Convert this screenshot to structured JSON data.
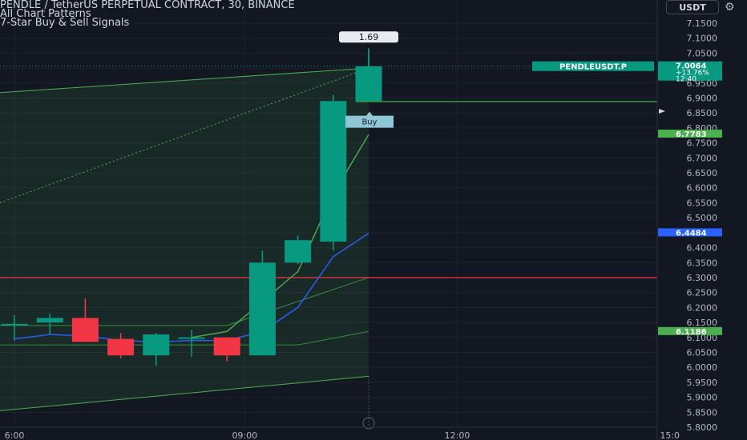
{
  "header": {
    "title": "PENDLE / TetherUS PERPETUAL CONTRACT, 30, BINANCE",
    "indicator_1": "All Chart Patterns",
    "indicator_2": "7-Star Buy & Sell Signals"
  },
  "toolbar": {
    "currency": "USDT",
    "settings_icon": "gear-icon"
  },
  "colors": {
    "background": "#131722",
    "bull": "#089981",
    "bear": "#f23645",
    "pattern_green": "#4caf50",
    "blue_line": "#2962ff",
    "red_line": "#f23645"
  },
  "chart_data": {
    "type": "candlestick",
    "symbol": "PENDLEUSDT.P",
    "timeframe": "30",
    "x_axis": {
      "tick_labels": [
        "6:00",
        "09:00",
        "12:00",
        "15:0"
      ],
      "tick_bars": [
        0,
        6.5,
        12.5,
        18.5
      ]
    },
    "ylim": [
      5.78,
      7.17
    ],
    "y_ticks": [
      "7.1500",
      "7.1000",
      "7.0500",
      "7.0000",
      "6.9500",
      "6.9000",
      "6.8500",
      "6.8000",
      "6.7500",
      "6.7000",
      "6.6500",
      "6.6000",
      "6.5500",
      "6.5000",
      "6.4500",
      "6.4000",
      "6.3500",
      "6.3000",
      "6.2500",
      "6.2000",
      "6.1500",
      "6.1000",
      "6.0500",
      "6.0000",
      "5.9500",
      "5.9000",
      "5.8500",
      "5.8000"
    ],
    "candles": [
      {
        "o": 6.145,
        "h": 6.175,
        "l": 6.09,
        "c": 6.145
      },
      {
        "o": 6.15,
        "h": 6.18,
        "l": 6.11,
        "c": 6.165
      },
      {
        "o": 6.165,
        "h": 6.23,
        "l": 6.095,
        "c": 6.085
      },
      {
        "o": 6.095,
        "h": 6.115,
        "l": 6.03,
        "c": 6.04
      },
      {
        "o": 6.04,
        "h": 6.115,
        "l": 6.005,
        "c": 6.11
      },
      {
        "o": 6.1,
        "h": 6.125,
        "l": 6.035,
        "c": 6.1
      },
      {
        "o": 6.1,
        "h": 6.1,
        "l": 6.02,
        "c": 6.04
      },
      {
        "o": 6.04,
        "h": 6.39,
        "l": 6.04,
        "c": 6.35
      },
      {
        "o": 6.35,
        "h": 6.44,
        "l": 6.345,
        "c": 6.425
      },
      {
        "o": 6.42,
        "h": 6.91,
        "l": 6.39,
        "c": 6.89
      },
      {
        "o": 6.89,
        "h": 7.06,
        "l": 6.89,
        "c": 7.006
      }
    ],
    "series": [
      {
        "name": "",
        "color": "#2962ff",
        "x": [
          0,
          1,
          2,
          3,
          4,
          5,
          6,
          7,
          8,
          9,
          10
        ],
        "y": [
          6.095,
          6.11,
          6.105,
          6.09,
          6.085,
          6.09,
          6.09,
          6.12,
          6.2,
          6.37,
          6.448
        ]
      },
      {
        "name": "",
        "color": "#4caf50",
        "x": [
          5,
          6,
          7,
          8,
          9,
          10
        ],
        "y": [
          6.1,
          6.12,
          6.22,
          6.32,
          6.58,
          6.778
        ]
      }
    ],
    "horizontal_lines": [
      {
        "price": 6.3,
        "color": "#f23645"
      },
      {
        "price": 6.888,
        "color": "#4caf50"
      }
    ],
    "pattern": {
      "upper": {
        "x": [
          -10,
          10
        ],
        "y": [
          6.93,
          7.0
        ]
      },
      "lower": {
        "x": [
          -10,
          10
        ],
        "y": [
          5.85,
          5.97
        ]
      },
      "inner_upper": {
        "x": [
          -10,
          6,
          10
        ],
        "y": [
          6.145,
          6.14,
          6.3
        ]
      },
      "inner_lower": {
        "x": [
          -10,
          8,
          10
        ],
        "y": [
          6.075,
          6.075,
          6.12
        ]
      },
      "dotted": {
        "x": [
          -10,
          10
        ],
        "y": [
          6.55,
          7.0
        ]
      }
    },
    "annotations": {
      "top_label": {
        "text": "1.69",
        "bar": 10,
        "price": 7.088
      },
      "buy_label": {
        "text": "Buy",
        "bar": 10,
        "price": 6.825
      }
    },
    "price_labels": [
      {
        "text": "PENDLEUSDT.P",
        "price": 7.0064,
        "color": "#089981",
        "position": "left"
      },
      {
        "text": "7.0064",
        "price": 7.0064,
        "color": "#089981",
        "sub": [
          "+13.76%",
          "12:40"
        ]
      },
      {
        "text": "6.7783",
        "price": 6.7783,
        "color": "#4caf50"
      },
      {
        "text": "6.4484",
        "price": 6.4484,
        "color": "#2962ff"
      },
      {
        "text": "6.1186",
        "price": 6.1186,
        "color": "#4caf50"
      }
    ]
  }
}
